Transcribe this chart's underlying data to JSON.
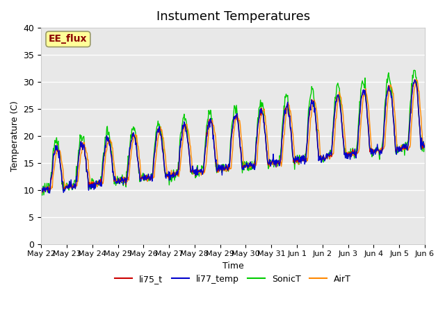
{
  "title": "Instument Temperatures",
  "ylabel": "Temperature (C)",
  "xlabel": "Time",
  "ylim": [
    0,
    40
  ],
  "annotation_text": "EE_flux",
  "annotation_color": "#8B0000",
  "annotation_bg": "#FFFF99",
  "annotation_border": "#999966",
  "background_color": "#E8E8E8",
  "series_colors": {
    "li75_t": "#CC0000",
    "li77_temp": "#0000CC",
    "SonicT": "#00CC00",
    "AirT": "#FF8800"
  },
  "xtick_labels": [
    "May 22",
    "May 23",
    "May 24",
    "May 25",
    "May 26",
    "May 27",
    "May 28",
    "May 29",
    "May 30",
    "May 31",
    "Jun 1",
    "Jun 2",
    "Jun 3",
    "Jun 4",
    "Jun 5",
    "Jun 6"
  ],
  "ytick_vals": [
    0,
    5,
    10,
    15,
    20,
    25,
    30,
    35,
    40
  ]
}
